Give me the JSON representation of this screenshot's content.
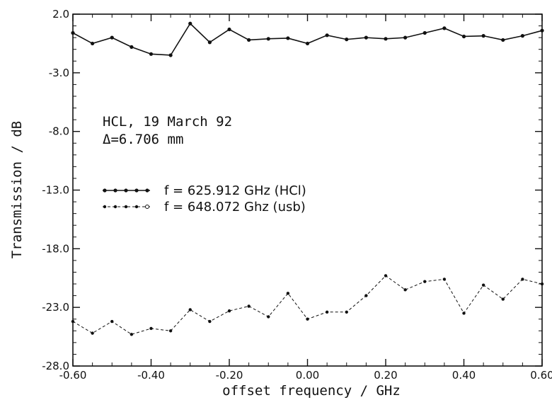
{
  "chart_data": {
    "type": "line",
    "xlabel": "offset frequency / GHz",
    "ylabel": "Transmission / dB",
    "xlim": [
      -0.6,
      0.6
    ],
    "ylim": [
      -28.0,
      2.0
    ],
    "x_ticks": [
      -0.6,
      -0.4,
      -0.2,
      0.0,
      0.2,
      0.4,
      0.6
    ],
    "x_tick_labels": [
      "-0.60",
      "-0.40",
      "-0.20",
      "0.00",
      "0.20",
      "0.40",
      "0.60"
    ],
    "y_ticks": [
      2.0,
      -3.0,
      -8.0,
      -13.0,
      -18.0,
      -23.0,
      -28.0
    ],
    "y_tick_labels": [
      "2.0",
      "-3.0",
      "-8.0",
      "-13.0",
      "-18.0",
      "-23.0",
      "-28.0"
    ],
    "grid": false,
    "legend_position": "center-left",
    "annotations": [
      "HCL, 19 March 92",
      "Δ=6.706 mm"
    ],
    "series": [
      {
        "name": "f = 625.912 GHz (HCl)",
        "style": "solid",
        "x": [
          -0.6,
          -0.55,
          -0.5,
          -0.45,
          -0.4,
          -0.35,
          -0.3,
          -0.25,
          -0.2,
          -0.15,
          -0.1,
          -0.05,
          0.0,
          0.05,
          0.1,
          0.15,
          0.2,
          0.25,
          0.3,
          0.35,
          0.4,
          0.45,
          0.5,
          0.55,
          0.6
        ],
        "y": [
          0.4,
          -0.5,
          0.0,
          -0.8,
          -1.4,
          -1.5,
          1.2,
          -0.4,
          0.7,
          -0.2,
          -0.1,
          -0.05,
          -0.5,
          0.2,
          -0.15,
          0.0,
          -0.1,
          0.0,
          0.4,
          0.8,
          0.1,
          0.15,
          -0.2,
          0.15,
          0.6
        ]
      },
      {
        "name": "f = 648.072 Ghz (usb)",
        "style": "dashed",
        "x": [
          -0.6,
          -0.55,
          -0.5,
          -0.45,
          -0.4,
          -0.35,
          -0.3,
          -0.25,
          -0.2,
          -0.15,
          -0.1,
          -0.05,
          0.0,
          0.05,
          0.1,
          0.15,
          0.2,
          0.25,
          0.3,
          0.35,
          0.4,
          0.45,
          0.5,
          0.55,
          0.6
        ],
        "y": [
          -24.2,
          -25.2,
          -24.2,
          -25.3,
          -24.8,
          -25.0,
          -23.2,
          -24.2,
          -23.3,
          -22.9,
          -23.8,
          -21.8,
          -24.0,
          -23.4,
          -23.4,
          -22.0,
          -20.3,
          -21.5,
          -20.8,
          -20.6,
          -23.5,
          -21.1,
          -22.3,
          -20.6,
          -21.0
        ]
      }
    ]
  }
}
